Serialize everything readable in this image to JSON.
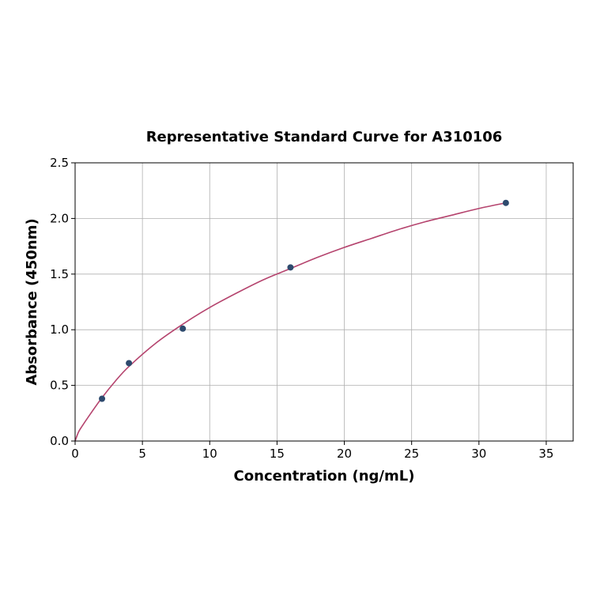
{
  "chart_data": {
    "type": "scatter",
    "title": "Representative Standard Curve for A310106",
    "xlabel": "Concentration (ng/mL)",
    "ylabel": "Absorbance (450nm)",
    "xlim": [
      0,
      37
    ],
    "ylim": [
      0,
      2.5
    ],
    "xticks": [
      0,
      5,
      10,
      15,
      20,
      25,
      30,
      35
    ],
    "yticks": [
      "0.0",
      "0.5",
      "1.0",
      "1.5",
      "2.0",
      "2.5"
    ],
    "grid": true,
    "points": {
      "x": [
        2,
        4,
        8,
        16,
        32
      ],
      "y": [
        0.38,
        0.7,
        1.01,
        1.56,
        2.14
      ],
      "color": "#2e4a6e"
    },
    "fit_curve": {
      "x": [
        0,
        0.25,
        0.5,
        1,
        2,
        3,
        4,
        6,
        8,
        10,
        12,
        14,
        16,
        18,
        20,
        22,
        24,
        26,
        28,
        30,
        32
      ],
      "y": [
        0,
        0.08,
        0.13,
        0.22,
        0.39,
        0.54,
        0.67,
        0.88,
        1.05,
        1.2,
        1.33,
        1.45,
        1.55,
        1.65,
        1.74,
        1.82,
        1.9,
        1.97,
        2.03,
        2.09,
        2.14
      ],
      "color": "#b5446e"
    }
  }
}
